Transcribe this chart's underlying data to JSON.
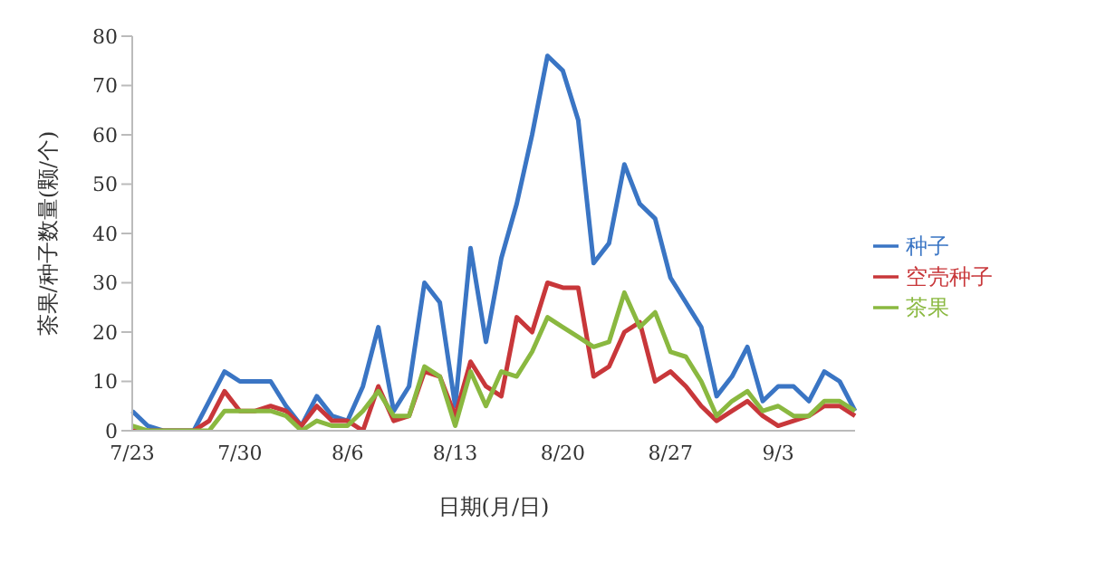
{
  "chart_data": {
    "type": "line",
    "xlabel": "日期(月/日)",
    "ylabel": "茶果/种子数量(颗/个)",
    "categories": [
      "7/23",
      null,
      null,
      null,
      null,
      null,
      null,
      "7/30",
      null,
      null,
      null,
      null,
      null,
      null,
      "8/6",
      null,
      null,
      null,
      null,
      null,
      null,
      "8/13",
      null,
      null,
      null,
      null,
      null,
      null,
      "8/20",
      null,
      null,
      null,
      null,
      null,
      null,
      "8/27",
      null,
      null,
      null,
      null,
      null,
      null,
      "9/3",
      null,
      null,
      null,
      null,
      null
    ],
    "series": [
      {
        "name": "种子",
        "color": "#3a75c4",
        "values": [
          4,
          1,
          0,
          0,
          0,
          6,
          12,
          10,
          10,
          10,
          5,
          1,
          7,
          3,
          2,
          9,
          21,
          4,
          9,
          30,
          26,
          5,
          37,
          18,
          35,
          46,
          60,
          76,
          73,
          63,
          34,
          38,
          54,
          46,
          43,
          31,
          26,
          21,
          7,
          11,
          17,
          6,
          9,
          9,
          6,
          12,
          10,
          4
        ]
      },
      {
        "name": "空壳种子",
        "color": "#c8373a",
        "values": [
          0,
          0,
          0,
          0,
          0,
          2,
          8,
          4,
          4,
          5,
          4,
          1,
          5,
          2,
          2,
          0,
          9,
          2,
          3,
          12,
          11,
          3,
          14,
          9,
          7,
          23,
          20,
          30,
          29,
          29,
          11,
          13,
          20,
          22,
          10,
          12,
          9,
          5,
          2,
          4,
          6,
          3,
          1,
          2,
          3,
          5,
          5,
          3
        ]
      },
      {
        "name": "茶果",
        "color": "#8ab840",
        "values": [
          1,
          0,
          0,
          0,
          0,
          0,
          4,
          4,
          4,
          4,
          3,
          0,
          2,
          1,
          1,
          4,
          8,
          3,
          3,
          13,
          11,
          1,
          12,
          5,
          12,
          11,
          16,
          23,
          21,
          19,
          17,
          18,
          28,
          21,
          24,
          16,
          15,
          10,
          3,
          6,
          8,
          4,
          5,
          3,
          3,
          6,
          6,
          4
        ]
      }
    ],
    "ylim": [
      0,
      80
    ],
    "yticks": [
      0,
      10,
      20,
      30,
      40,
      50,
      60,
      70,
      80
    ],
    "grid": false,
    "legend": "right",
    "marker": "none",
    "line_style": "solid"
  }
}
